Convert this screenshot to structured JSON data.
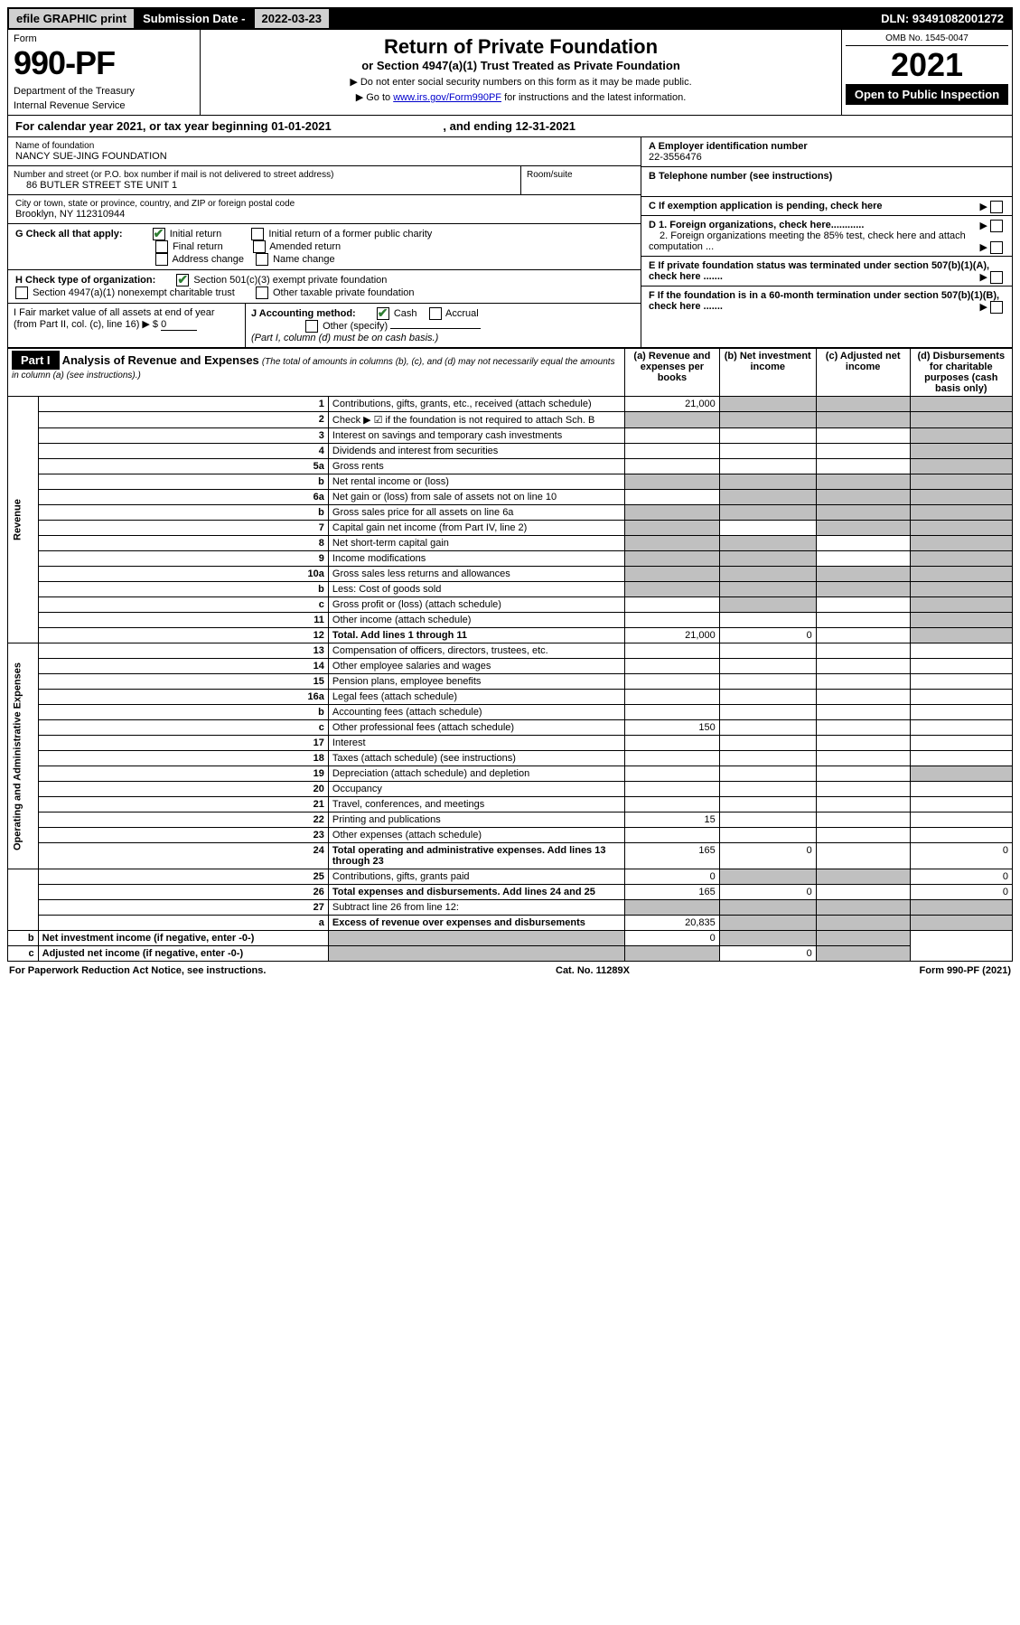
{
  "topbar": {
    "efile": "efile GRAPHIC print",
    "sub_label": "Submission Date - ",
    "sub_date": "2022-03-23",
    "dln": "DLN: 93491082001272"
  },
  "header": {
    "form_label": "Form",
    "form_number": "990-PF",
    "dept": "Department of the Treasury",
    "irs": "Internal Revenue Service",
    "title": "Return of Private Foundation",
    "subtitle": "or Section 4947(a)(1) Trust Treated as Private Foundation",
    "note1": "▶ Do not enter social security numbers on this form as it may be made public.",
    "note2_pre": "▶ Go to ",
    "note2_link": "www.irs.gov/Form990PF",
    "note2_post": " for instructions and the latest information.",
    "omb": "OMB No. 1545-0047",
    "year": "2021",
    "open_public": "Open to Public Inspection"
  },
  "cal_year": {
    "text": "For calendar year 2021, or tax year beginning 01-01-2021",
    "ending": ", and ending 12-31-2021"
  },
  "info": {
    "name_label": "Name of foundation",
    "name": "NANCY SUE-JING FOUNDATION",
    "addr_label": "Number and street (or P.O. box number if mail is not delivered to street address)",
    "addr": "86 BUTLER STREET STE UNIT 1",
    "room_label": "Room/suite",
    "city_label": "City or town, state or province, country, and ZIP or foreign postal code",
    "city": "Brooklyn, NY  112310944",
    "ein_label": "A Employer identification number",
    "ein": "22-3556476",
    "tel_label": "B Telephone number (see instructions)",
    "c_label": "C If exemption application is pending, check here",
    "g_label": "G Check all that apply:",
    "g_initial": "Initial return",
    "g_initial_former": "Initial return of a former public charity",
    "g_final": "Final return",
    "g_amended": "Amended return",
    "g_address": "Address change",
    "g_name": "Name change",
    "d1_label": "D 1. Foreign organizations, check here............",
    "d2_label": "2. Foreign organizations meeting the 85% test, check here and attach computation ...",
    "h_label": "H Check type of organization:",
    "h_501c3": "Section 501(c)(3) exempt private foundation",
    "h_4947": "Section 4947(a)(1) nonexempt charitable trust",
    "h_other_tax": "Other taxable private foundation",
    "e_label": "E If private foundation status was terminated under section 507(b)(1)(A), check here .......",
    "i_label": "I Fair market value of all assets at end of year (from Part II, col. (c), line 16) ▶ $",
    "i_value": "0",
    "j_label": "J Accounting method:",
    "j_cash": "Cash",
    "j_accrual": "Accrual",
    "j_other": "Other (specify)",
    "j_note": "(Part I, column (d) must be on cash basis.)",
    "f_label": "F If the foundation is in a 60-month termination under section 507(b)(1)(B), check here ......."
  },
  "part1": {
    "label": "Part I",
    "title": "Analysis of Revenue and Expenses",
    "title_note": "(The total of amounts in columns (b), (c), and (d) may not necessarily equal the amounts in column (a) (see instructions).)",
    "col_a": "(a) Revenue and expenses per books",
    "col_b": "(b) Net investment income",
    "col_c": "(c) Adjusted net income",
    "col_d": "(d) Disbursements for charitable purposes (cash basis only)"
  },
  "sections": {
    "revenue": "Revenue",
    "expenses": "Operating and Administrative Expenses"
  },
  "rows": [
    {
      "n": "1",
      "d": "Contributions, gifts, grants, etc., received (attach schedule)",
      "a": "21,000",
      "b": "",
      "c": "",
      "ds": "",
      "sb": true,
      "sc": true,
      "sd": true
    },
    {
      "n": "2",
      "d": "Check ▶ ☑ if the foundation is not required to attach Sch. B",
      "a": "",
      "b": "",
      "c": "",
      "ds": "",
      "sa": true,
      "sb": true,
      "sc": true,
      "sd": true
    },
    {
      "n": "3",
      "d": "Interest on savings and temporary cash investments",
      "a": "",
      "b": "",
      "c": "",
      "ds": "",
      "sd": true
    },
    {
      "n": "4",
      "d": "Dividends and interest from securities",
      "a": "",
      "b": "",
      "c": "",
      "ds": "",
      "sd": true
    },
    {
      "n": "5a",
      "d": "Gross rents",
      "a": "",
      "b": "",
      "c": "",
      "ds": "",
      "sd": true
    },
    {
      "n": "b",
      "d": "Net rental income or (loss)",
      "a": "",
      "b": "",
      "c": "",
      "ds": "",
      "sa": true,
      "sb": true,
      "sc": true,
      "sd": true
    },
    {
      "n": "6a",
      "d": "Net gain or (loss) from sale of assets not on line 10",
      "a": "",
      "b": "",
      "c": "",
      "ds": "",
      "sb": true,
      "sc": true,
      "sd": true
    },
    {
      "n": "b",
      "d": "Gross sales price for all assets on line 6a",
      "a": "",
      "b": "",
      "c": "",
      "ds": "",
      "sa": true,
      "sb": true,
      "sc": true,
      "sd": true
    },
    {
      "n": "7",
      "d": "Capital gain net income (from Part IV, line 2)",
      "a": "",
      "b": "",
      "c": "",
      "ds": "",
      "sa": true,
      "sc": true,
      "sd": true
    },
    {
      "n": "8",
      "d": "Net short-term capital gain",
      "a": "",
      "b": "",
      "c": "",
      "ds": "",
      "sa": true,
      "sb": true,
      "sd": true
    },
    {
      "n": "9",
      "d": "Income modifications",
      "a": "",
      "b": "",
      "c": "",
      "ds": "",
      "sa": true,
      "sb": true,
      "sd": true
    },
    {
      "n": "10a",
      "d": "Gross sales less returns and allowances",
      "a": "",
      "b": "",
      "c": "",
      "ds": "",
      "sa": true,
      "sb": true,
      "sc": true,
      "sd": true
    },
    {
      "n": "b",
      "d": "Less: Cost of goods sold",
      "a": "",
      "b": "",
      "c": "",
      "ds": "",
      "sa": true,
      "sb": true,
      "sc": true,
      "sd": true
    },
    {
      "n": "c",
      "d": "Gross profit or (loss) (attach schedule)",
      "a": "",
      "b": "",
      "c": "",
      "ds": "",
      "sb": true,
      "sd": true
    },
    {
      "n": "11",
      "d": "Other income (attach schedule)",
      "a": "",
      "b": "",
      "c": "",
      "ds": "",
      "sd": true
    },
    {
      "n": "12",
      "d": "Total. Add lines 1 through 11",
      "a": "21,000",
      "b": "0",
      "c": "",
      "ds": "",
      "bold": true,
      "sd": true
    },
    {
      "n": "13",
      "d": "Compensation of officers, directors, trustees, etc.",
      "a": "",
      "b": "",
      "c": "",
      "ds": ""
    },
    {
      "n": "14",
      "d": "Other employee salaries and wages",
      "a": "",
      "b": "",
      "c": "",
      "ds": ""
    },
    {
      "n": "15",
      "d": "Pension plans, employee benefits",
      "a": "",
      "b": "",
      "c": "",
      "ds": ""
    },
    {
      "n": "16a",
      "d": "Legal fees (attach schedule)",
      "a": "",
      "b": "",
      "c": "",
      "ds": ""
    },
    {
      "n": "b",
      "d": "Accounting fees (attach schedule)",
      "a": "",
      "b": "",
      "c": "",
      "ds": ""
    },
    {
      "n": "c",
      "d": "Other professional fees (attach schedule)",
      "a": "150",
      "b": "",
      "c": "",
      "ds": ""
    },
    {
      "n": "17",
      "d": "Interest",
      "a": "",
      "b": "",
      "c": "",
      "ds": ""
    },
    {
      "n": "18",
      "d": "Taxes (attach schedule) (see instructions)",
      "a": "",
      "b": "",
      "c": "",
      "ds": ""
    },
    {
      "n": "19",
      "d": "Depreciation (attach schedule) and depletion",
      "a": "",
      "b": "",
      "c": "",
      "ds": "",
      "sd": true
    },
    {
      "n": "20",
      "d": "Occupancy",
      "a": "",
      "b": "",
      "c": "",
      "ds": ""
    },
    {
      "n": "21",
      "d": "Travel, conferences, and meetings",
      "a": "",
      "b": "",
      "c": "",
      "ds": ""
    },
    {
      "n": "22",
      "d": "Printing and publications",
      "a": "15",
      "b": "",
      "c": "",
      "ds": ""
    },
    {
      "n": "23",
      "d": "Other expenses (attach schedule)",
      "a": "",
      "b": "",
      "c": "",
      "ds": ""
    },
    {
      "n": "24",
      "d": "Total operating and administrative expenses. Add lines 13 through 23",
      "a": "165",
      "b": "0",
      "c": "",
      "ds": "0",
      "bold": true
    },
    {
      "n": "25",
      "d": "Contributions, gifts, grants paid",
      "a": "0",
      "b": "",
      "c": "",
      "ds": "0",
      "sb": true,
      "sc": true
    },
    {
      "n": "26",
      "d": "Total expenses and disbursements. Add lines 24 and 25",
      "a": "165",
      "b": "0",
      "c": "",
      "ds": "0",
      "bold": true
    },
    {
      "n": "27",
      "d": "Subtract line 26 from line 12:",
      "a": "",
      "b": "",
      "c": "",
      "ds": "",
      "sa": true,
      "sb": true,
      "sc": true,
      "sd": true
    },
    {
      "n": "a",
      "d": "Excess of revenue over expenses and disbursements",
      "a": "20,835",
      "b": "",
      "c": "",
      "ds": "",
      "bold": true,
      "sb": true,
      "sc": true,
      "sd": true
    },
    {
      "n": "b",
      "d": "Net investment income (if negative, enter -0-)",
      "a": "",
      "b": "0",
      "c": "",
      "ds": "",
      "bold": true,
      "sa": true,
      "sc": true,
      "sd": true
    },
    {
      "n": "c",
      "d": "Adjusted net income (if negative, enter -0-)",
      "a": "",
      "b": "",
      "c": "0",
      "ds": "",
      "bold": true,
      "sa": true,
      "sb": true,
      "sd": true
    }
  ],
  "footer": {
    "left": "For Paperwork Reduction Act Notice, see instructions.",
    "mid": "Cat. No. 11289X",
    "right": "Form 990-PF (2021)"
  }
}
